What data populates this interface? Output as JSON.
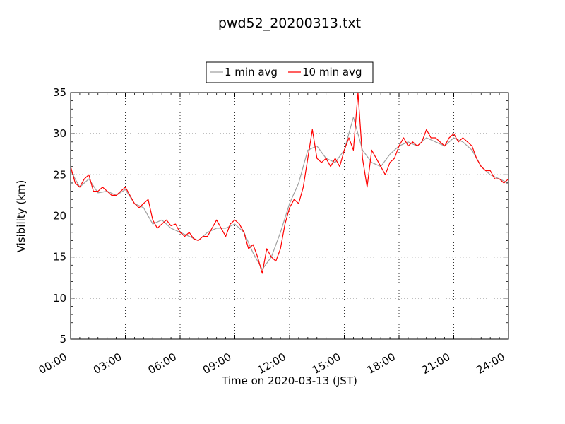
{
  "chart_data": {
    "type": "line",
    "title": "pwd52_20200313.txt",
    "xlabel": "Time on 2020-03-13 (JST)",
    "ylabel": "Visibility (km)",
    "xlim": [
      "00:00",
      "24:00"
    ],
    "ylim": [
      5,
      35
    ],
    "x_ticks": [
      "00:00",
      "03:00",
      "06:00",
      "09:00",
      "12:00",
      "15:00",
      "18:00",
      "21:00",
      "24:00"
    ],
    "y_ticks": [
      "5",
      "10",
      "15",
      "20",
      "25",
      "30",
      "35"
    ],
    "grid": true,
    "legend_position": "top-center",
    "series": [
      {
        "name": "1 min avg",
        "color": "#a0a0a0",
        "x": [
          "00:00",
          "00:30",
          "01:00",
          "01:30",
          "02:00",
          "02:30",
          "03:00",
          "03:30",
          "04:00",
          "04:30",
          "05:00",
          "05:30",
          "06:00",
          "06:30",
          "07:00",
          "07:30",
          "08:00",
          "08:30",
          "09:00",
          "09:30",
          "10:00",
          "10:30",
          "11:00",
          "11:30",
          "12:00",
          "12:30",
          "13:00",
          "13:30",
          "14:00",
          "14:30",
          "15:00",
          "15:30",
          "16:00",
          "16:30",
          "17:00",
          "17:30",
          "18:00",
          "18:30",
          "19:00",
          "19:30",
          "20:00",
          "20:30",
          "21:00",
          "21:30",
          "22:00",
          "22:30",
          "23:00",
          "23:30",
          "24:00"
        ],
        "y": [
          25.5,
          23.5,
          24.5,
          22.8,
          23.0,
          22.5,
          23.2,
          21.5,
          21.0,
          19.0,
          19.5,
          18.5,
          18.0,
          17.5,
          17.0,
          18.0,
          18.5,
          18.5,
          19.0,
          18.0,
          15.5,
          13.5,
          15.0,
          18.0,
          21.5,
          24.0,
          28.0,
          28.5,
          27.0,
          26.5,
          28.0,
          32.0,
          28.0,
          26.5,
          26.0,
          27.5,
          28.5,
          29.0,
          28.5,
          29.5,
          29.0,
          28.5,
          29.5,
          29.0,
          28.0,
          26.0,
          25.0,
          24.5,
          24.0
        ]
      },
      {
        "name": "10 min avg",
        "color": "#ff0000",
        "x": [
          "00:00",
          "00:15",
          "00:30",
          "00:45",
          "01:00",
          "01:15",
          "01:30",
          "01:45",
          "02:00",
          "02:15",
          "02:30",
          "02:45",
          "03:00",
          "03:15",
          "03:30",
          "03:45",
          "04:00",
          "04:15",
          "04:30",
          "04:45",
          "05:00",
          "05:15",
          "05:30",
          "05:45",
          "06:00",
          "06:15",
          "06:30",
          "06:45",
          "07:00",
          "07:15",
          "07:30",
          "07:45",
          "08:00",
          "08:15",
          "08:30",
          "08:45",
          "09:00",
          "09:15",
          "09:30",
          "09:45",
          "10:00",
          "10:15",
          "10:30",
          "10:45",
          "11:00",
          "11:15",
          "11:30",
          "11:45",
          "12:00",
          "12:15",
          "12:30",
          "12:45",
          "13:00",
          "13:15",
          "13:30",
          "13:45",
          "14:00",
          "14:15",
          "14:30",
          "14:45",
          "15:00",
          "15:15",
          "15:30",
          "15:45",
          "16:00",
          "16:15",
          "16:30",
          "16:45",
          "17:00",
          "17:15",
          "17:30",
          "17:45",
          "18:00",
          "18:15",
          "18:30",
          "18:45",
          "19:00",
          "19:15",
          "19:30",
          "19:45",
          "20:00",
          "20:15",
          "20:30",
          "20:45",
          "21:00",
          "21:15",
          "21:30",
          "21:45",
          "22:00",
          "22:15",
          "22:30",
          "22:45",
          "23:00",
          "23:15",
          "23:30",
          "23:45",
          "24:00"
        ],
        "y": [
          26.0,
          24.0,
          23.5,
          24.5,
          25.0,
          23.0,
          23.0,
          23.5,
          23.0,
          22.5,
          22.5,
          23.0,
          23.5,
          22.5,
          21.5,
          21.0,
          21.5,
          22.0,
          19.5,
          18.5,
          19.0,
          19.5,
          18.8,
          19.0,
          18.0,
          17.5,
          18.0,
          17.2,
          17.0,
          17.5,
          17.5,
          18.5,
          19.5,
          18.5,
          17.5,
          19.0,
          19.5,
          19.0,
          18.0,
          16.0,
          16.5,
          15.0,
          13.0,
          16.0,
          15.0,
          14.5,
          16.0,
          19.0,
          21.0,
          22.0,
          21.5,
          23.5,
          27.0,
          30.5,
          27.0,
          26.5,
          27.0,
          26.0,
          27.0,
          26.0,
          28.0,
          29.5,
          28.0,
          35.0,
          27.0,
          23.5,
          28.0,
          27.0,
          26.0,
          25.0,
          26.5,
          27.0,
          28.5,
          29.5,
          28.5,
          29.0,
          28.5,
          29.0,
          30.5,
          29.5,
          29.5,
          29.0,
          28.5,
          29.5,
          30.0,
          29.0,
          29.5,
          29.0,
          28.5,
          27.0,
          26.0,
          25.5,
          25.5,
          24.5,
          24.5,
          24.0,
          24.5
        ]
      }
    ]
  }
}
